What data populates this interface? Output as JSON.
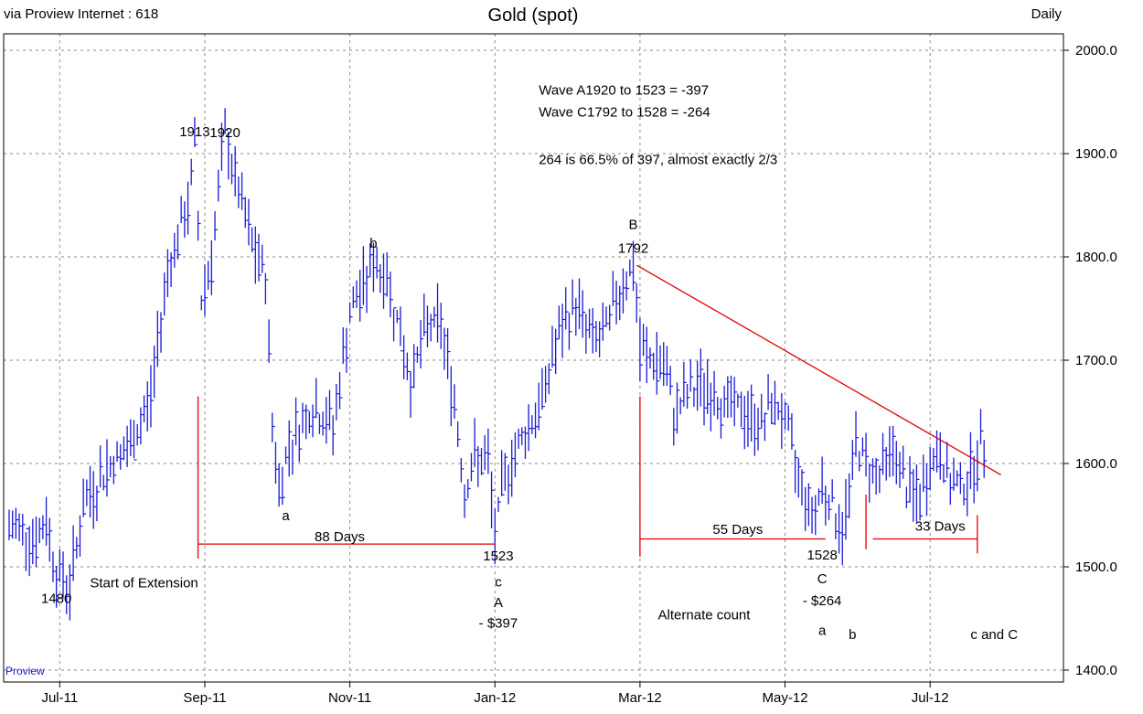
{
  "header": {
    "source": "via Proview Internet : 618",
    "title": "Gold (spot)",
    "frequency": "Daily"
  },
  "watermark": "Proview",
  "colors": {
    "bars": "#1a1ad6",
    "red": "#e00000",
    "grid": "#888888",
    "frame": "#000000",
    "background": "#ffffff"
  },
  "chart_data": {
    "type": "ohlc",
    "title": "Gold (spot)",
    "frequency": "Daily",
    "x_unit": "trading days from the first bar shown (approx. mid-June 2011)",
    "ylim": [
      1400,
      2000
    ],
    "y_ticks": [
      {
        "value": 1400,
        "label": "1400.0"
      },
      {
        "value": 1500,
        "label": "1500.0"
      },
      {
        "value": 1600,
        "label": "1600.0"
      },
      {
        "value": 1700,
        "label": "1700.0"
      },
      {
        "value": 1800,
        "label": "1800.0"
      },
      {
        "value": 1900,
        "label": "1900.0"
      },
      {
        "value": 2000,
        "label": "2000.0"
      }
    ],
    "x_ticks": [
      {
        "day": 15,
        "label": "Jul-11"
      },
      {
        "day": 58,
        "label": "Sep-11"
      },
      {
        "day": 101,
        "label": "Nov-11"
      },
      {
        "day": 144,
        "label": "Jan-12"
      },
      {
        "day": 187,
        "label": "Mar-12"
      },
      {
        "day": 230,
        "label": "May-12"
      },
      {
        "day": 273,
        "label": "Jul-12"
      }
    ],
    "x_range": [
      0,
      309
    ],
    "price_path": [
      [
        0,
        1535
      ],
      [
        3,
        1540
      ],
      [
        8,
        1525
      ],
      [
        11,
        1545
      ],
      [
        14,
        1495
      ],
      [
        18,
        1482
      ],
      [
        22,
        1560
      ],
      [
        30,
        1600
      ],
      [
        36,
        1615
      ],
      [
        42,
        1665
      ],
      [
        47,
        1790
      ],
      [
        53,
        1848
      ],
      [
        55,
        1905
      ],
      [
        57,
        1760
      ],
      [
        60,
        1800
      ],
      [
        64,
        1920
      ],
      [
        67,
        1875
      ],
      [
        72,
        1810
      ],
      [
        76,
        1780
      ],
      [
        78,
        1640
      ],
      [
        80,
        1575
      ],
      [
        83,
        1620
      ],
      [
        90,
        1655
      ],
      [
        96,
        1635
      ],
      [
        101,
        1745
      ],
      [
        104,
        1765
      ],
      [
        108,
        1795
      ],
      [
        112,
        1780
      ],
      [
        116,
        1725
      ],
      [
        119,
        1680
      ],
      [
        124,
        1735
      ],
      [
        128,
        1735
      ],
      [
        132,
        1660
      ],
      [
        135,
        1575
      ],
      [
        138,
        1605
      ],
      [
        142,
        1600
      ],
      [
        144,
        1530
      ],
      [
        147,
        1590
      ],
      [
        152,
        1625
      ],
      [
        158,
        1660
      ],
      [
        161,
        1705
      ],
      [
        164,
        1730
      ],
      [
        168,
        1755
      ],
      [
        172,
        1725
      ],
      [
        176,
        1720
      ],
      [
        181,
        1770
      ],
      [
        185,
        1790
      ],
      [
        187,
        1710
      ],
      [
        190,
        1700
      ],
      [
        194,
        1695
      ],
      [
        197,
        1650
      ],
      [
        202,
        1670
      ],
      [
        206,
        1675
      ],
      [
        211,
        1660
      ],
      [
        215,
        1655
      ],
      [
        219,
        1645
      ],
      [
        223,
        1640
      ],
      [
        227,
        1660
      ],
      [
        230,
        1640
      ],
      [
        233,
        1600
      ],
      [
        238,
        1550
      ],
      [
        241,
        1580
      ],
      [
        244,
        1560
      ],
      [
        247,
        1530
      ],
      [
        251,
        1620
      ],
      [
        254,
        1600
      ],
      [
        258,
        1590
      ],
      [
        262,
        1615
      ],
      [
        266,
        1575
      ],
      [
        270,
        1565
      ],
      [
        273,
        1600
      ],
      [
        276,
        1610
      ],
      [
        279,
        1580
      ],
      [
        283,
        1580
      ],
      [
        286,
        1600
      ],
      [
        289,
        1620
      ]
    ],
    "wave_labels": [
      {
        "text": "1480",
        "day": 14,
        "price": 1465
      },
      {
        "text": "Start of Extension",
        "day": 40,
        "price": 1480
      },
      {
        "text": "1913",
        "day": 55,
        "price": 1917
      },
      {
        "text": "1920",
        "day": 64,
        "price": 1916
      },
      {
        "text": "a",
        "day": 82,
        "price": 1545
      },
      {
        "text": "88 Days",
        "day": 98,
        "price": 1525
      },
      {
        "text": "b",
        "day": 108,
        "price": 1809
      },
      {
        "text": "1523",
        "day": 145,
        "price": 1506
      },
      {
        "text": "c",
        "day": 145,
        "price": 1481
      },
      {
        "text": "A",
        "day": 145,
        "price": 1461
      },
      {
        "text": "- $397",
        "day": 145,
        "price": 1441
      },
      {
        "text": "B",
        "day": 185,
        "price": 1827
      },
      {
        "text": "1792",
        "day": 185,
        "price": 1804
      },
      {
        "text": "55 Days",
        "day": 216,
        "price": 1532
      },
      {
        "text": "Alternate count",
        "day": 206,
        "price": 1449
      },
      {
        "text": "1528",
        "day": 241,
        "price": 1507
      },
      {
        "text": "C",
        "day": 241,
        "price": 1484
      },
      {
        "text": "- $264",
        "day": 241,
        "price": 1463
      },
      {
        "text": "a",
        "day": 241,
        "price": 1434
      },
      {
        "text": "b",
        "day": 250,
        "price": 1430
      },
      {
        "text": "33 Days",
        "day": 276,
        "price": 1535
      },
      {
        "text": "c and C",
        "day": 292,
        "price": 1430
      }
    ],
    "info_lines": [
      {
        "text": "Wave A1920 to 1523   = -397",
        "day": 157,
        "price": 1957
      },
      {
        "text": "Wave C1792 to 1528  = -264",
        "day": 157,
        "price": 1936
      },
      {
        "text": "264 is 66.5% of 397, almost exactly 2/3",
        "day": 157,
        "price": 1890
      }
    ],
    "red_lines": [
      {
        "name": "trendline",
        "from": {
          "day": 186,
          "price": 1792
        },
        "to": {
          "day": 294,
          "price": 1589
        }
      },
      {
        "name": "vertical-wave-a-start",
        "from": {
          "day": 56,
          "price": 1665
        },
        "to": {
          "day": 56,
          "price": 1508
        }
      },
      {
        "name": "horizontal-88-days",
        "from": {
          "day": 56,
          "price": 1522
        },
        "to": {
          "day": 144,
          "price": 1522
        }
      },
      {
        "name": "vertical-wave-c-start",
        "from": {
          "day": 187,
          "price": 1665
        },
        "to": {
          "day": 187,
          "price": 1510
        }
      },
      {
        "name": "horizontal-55-days",
        "from": {
          "day": 187,
          "price": 1527
        },
        "to": {
          "day": 242,
          "price": 1527
        }
      },
      {
        "name": "vertical-33-start",
        "from": {
          "day": 254,
          "price": 1570
        },
        "to": {
          "day": 254,
          "price": 1517
        }
      },
      {
        "name": "horizontal-33-days",
        "from": {
          "day": 256,
          "price": 1527
        },
        "to": {
          "day": 287,
          "price": 1527
        }
      },
      {
        "name": "vertical-33-end",
        "from": {
          "day": 287,
          "price": 1550
        },
        "to": {
          "day": 287,
          "price": 1513
        }
      }
    ]
  }
}
